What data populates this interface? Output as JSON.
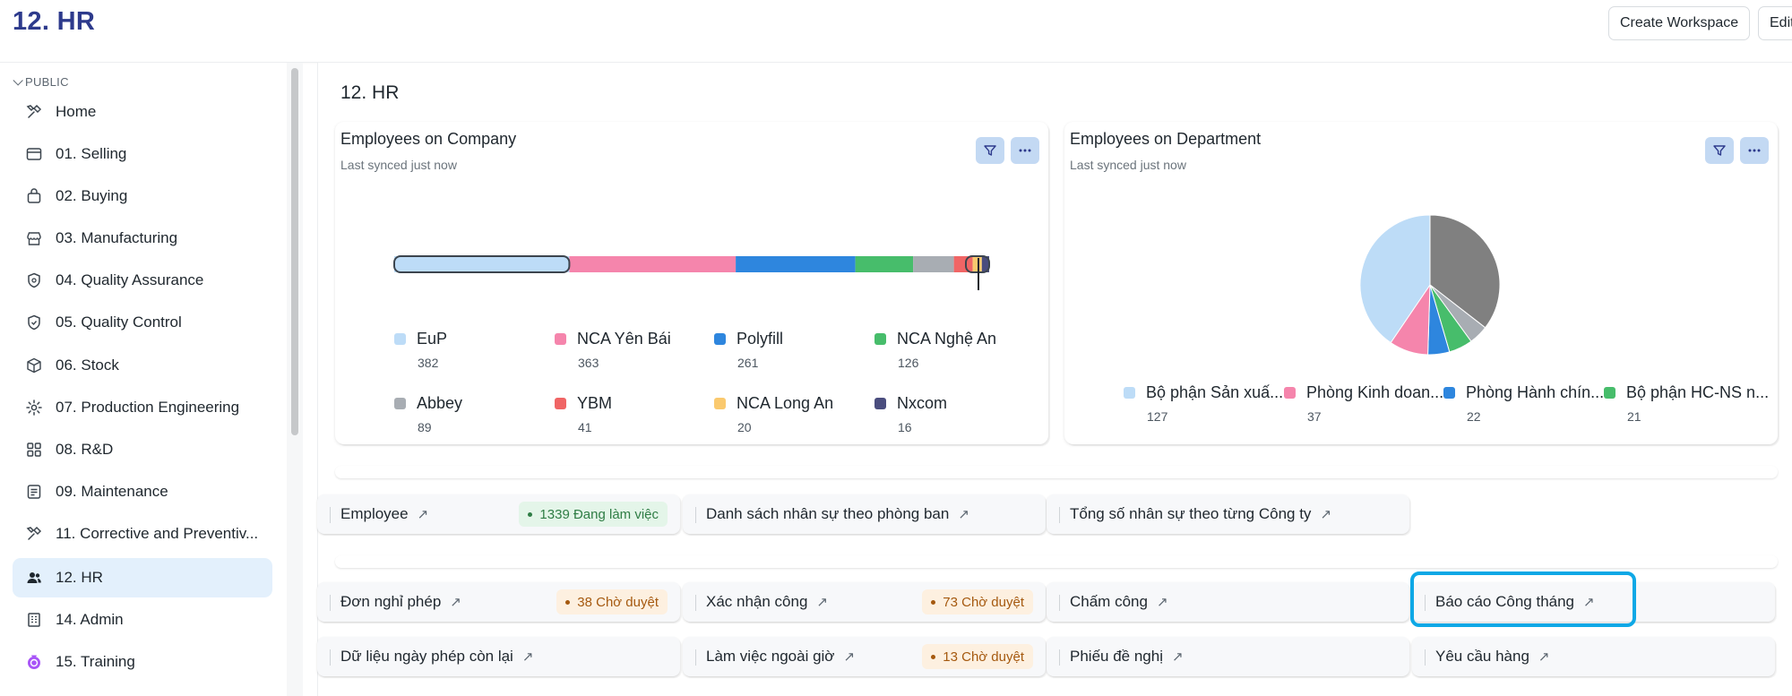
{
  "app": {
    "title": "12. HR"
  },
  "topbar": {
    "create_workspace": "Create Workspace",
    "edit": "Edit"
  },
  "sidebar": {
    "section": "PUBLIC",
    "items": [
      {
        "label": "Home",
        "icon": "tools-icon"
      },
      {
        "label": "01. Selling",
        "icon": "card-icon"
      },
      {
        "label": "02. Buying",
        "icon": "bag-icon"
      },
      {
        "label": "03. Manufacturing",
        "icon": "store-icon"
      },
      {
        "label": "04. Quality Assurance",
        "icon": "shield-icon"
      },
      {
        "label": "05. Quality Control",
        "icon": "shield-check-icon"
      },
      {
        "label": "06. Stock",
        "icon": "box-icon"
      },
      {
        "label": "07. Production Engineering",
        "icon": "gear-icon"
      },
      {
        "label": "08. R&D",
        "icon": "grid-icon"
      },
      {
        "label": "09. Maintenance",
        "icon": "document-icon"
      },
      {
        "label": "11. Corrective and Preventiv...",
        "icon": "tools-icon"
      },
      {
        "label": "12. HR",
        "icon": "users-icon",
        "active": true
      },
      {
        "label": "14. Admin",
        "icon": "building-icon"
      },
      {
        "label": "15. Training",
        "icon": "medal-icon"
      }
    ]
  },
  "main": {
    "page_title": "12. HR",
    "company_card": {
      "title": "Employees on Company",
      "subtitle": "Last synced just now",
      "legend": [
        {
          "name": "EuP",
          "value": "382"
        },
        {
          "name": "NCA Yên Bái",
          "value": "363"
        },
        {
          "name": "Polyfill",
          "value": "261"
        },
        {
          "name": "NCA Nghệ An",
          "value": "126"
        },
        {
          "name": "Abbey",
          "value": "89"
        },
        {
          "name": "YBM",
          "value": "41"
        },
        {
          "name": "NCA Long An",
          "value": "20"
        },
        {
          "name": "Nxcom",
          "value": "16"
        }
      ]
    },
    "department_card": {
      "title": "Employees on Department",
      "subtitle": "Last synced just now",
      "legend": [
        {
          "name": "Bộ phận Sản xuấ...",
          "value": "127"
        },
        {
          "name": "Phòng Kinh doan...",
          "value": "37"
        },
        {
          "name": "Phòng Hành chín...",
          "value": "22"
        },
        {
          "name": "Bộ phận HC-NS n...",
          "value": "21"
        }
      ]
    },
    "shortcuts_row1": [
      {
        "label": "Employee",
        "badge": "1339 Đang làm việc"
      },
      {
        "label": "Danh sách nhân sự theo phòng ban"
      },
      {
        "label": "Tổng số nhân sự theo từng Công ty"
      }
    ],
    "shortcuts_row2": [
      {
        "label": "Đơn nghỉ phép",
        "badge": "38 Chờ duyệt"
      },
      {
        "label": "Xác nhận công",
        "badge": "73 Chờ duyệt"
      },
      {
        "label": "Chấm công"
      },
      {
        "label": "Báo cáo Công tháng"
      }
    ],
    "shortcuts_row3": [
      {
        "label": "Dữ liệu ngày phép còn lại"
      },
      {
        "label": "Làm việc ngoài giờ",
        "badge": "13 Chờ duyệt"
      },
      {
        "label": "Phiếu đề nghị"
      },
      {
        "label": "Yêu cầu hàng"
      }
    ]
  },
  "colors": {
    "accent": "#2d3a8c",
    "highlight": "#0ea8e6",
    "series": [
      "#bddcf7",
      "#f585ac",
      "#2e86de",
      "#47bd6b",
      "#a8adb3",
      "#f06565",
      "#fac96e",
      "#4a4d7e"
    ]
  },
  "chart_data": [
    {
      "type": "bar",
      "stacked": true,
      "orientation": "horizontal",
      "title": "Employees on Company",
      "categories": [
        "EuP",
        "NCA Yên Bái",
        "Polyfill",
        "NCA Nghệ An",
        "Abbey",
        "YBM",
        "NCA Long An",
        "Nxcom"
      ],
      "values": [
        382,
        363,
        261,
        126,
        89,
        41,
        20,
        16
      ],
      "legend": "bottom"
    },
    {
      "type": "pie",
      "title": "Employees on Department",
      "categories": [
        "Bộ phận Sản xuấ...",
        "Phòng Kinh doan...",
        "Phòng Hành chín...",
        "Bộ phận HC-NS n..."
      ],
      "values": [
        127,
        37,
        22,
        21
      ],
      "legend": "bottom"
    }
  ]
}
